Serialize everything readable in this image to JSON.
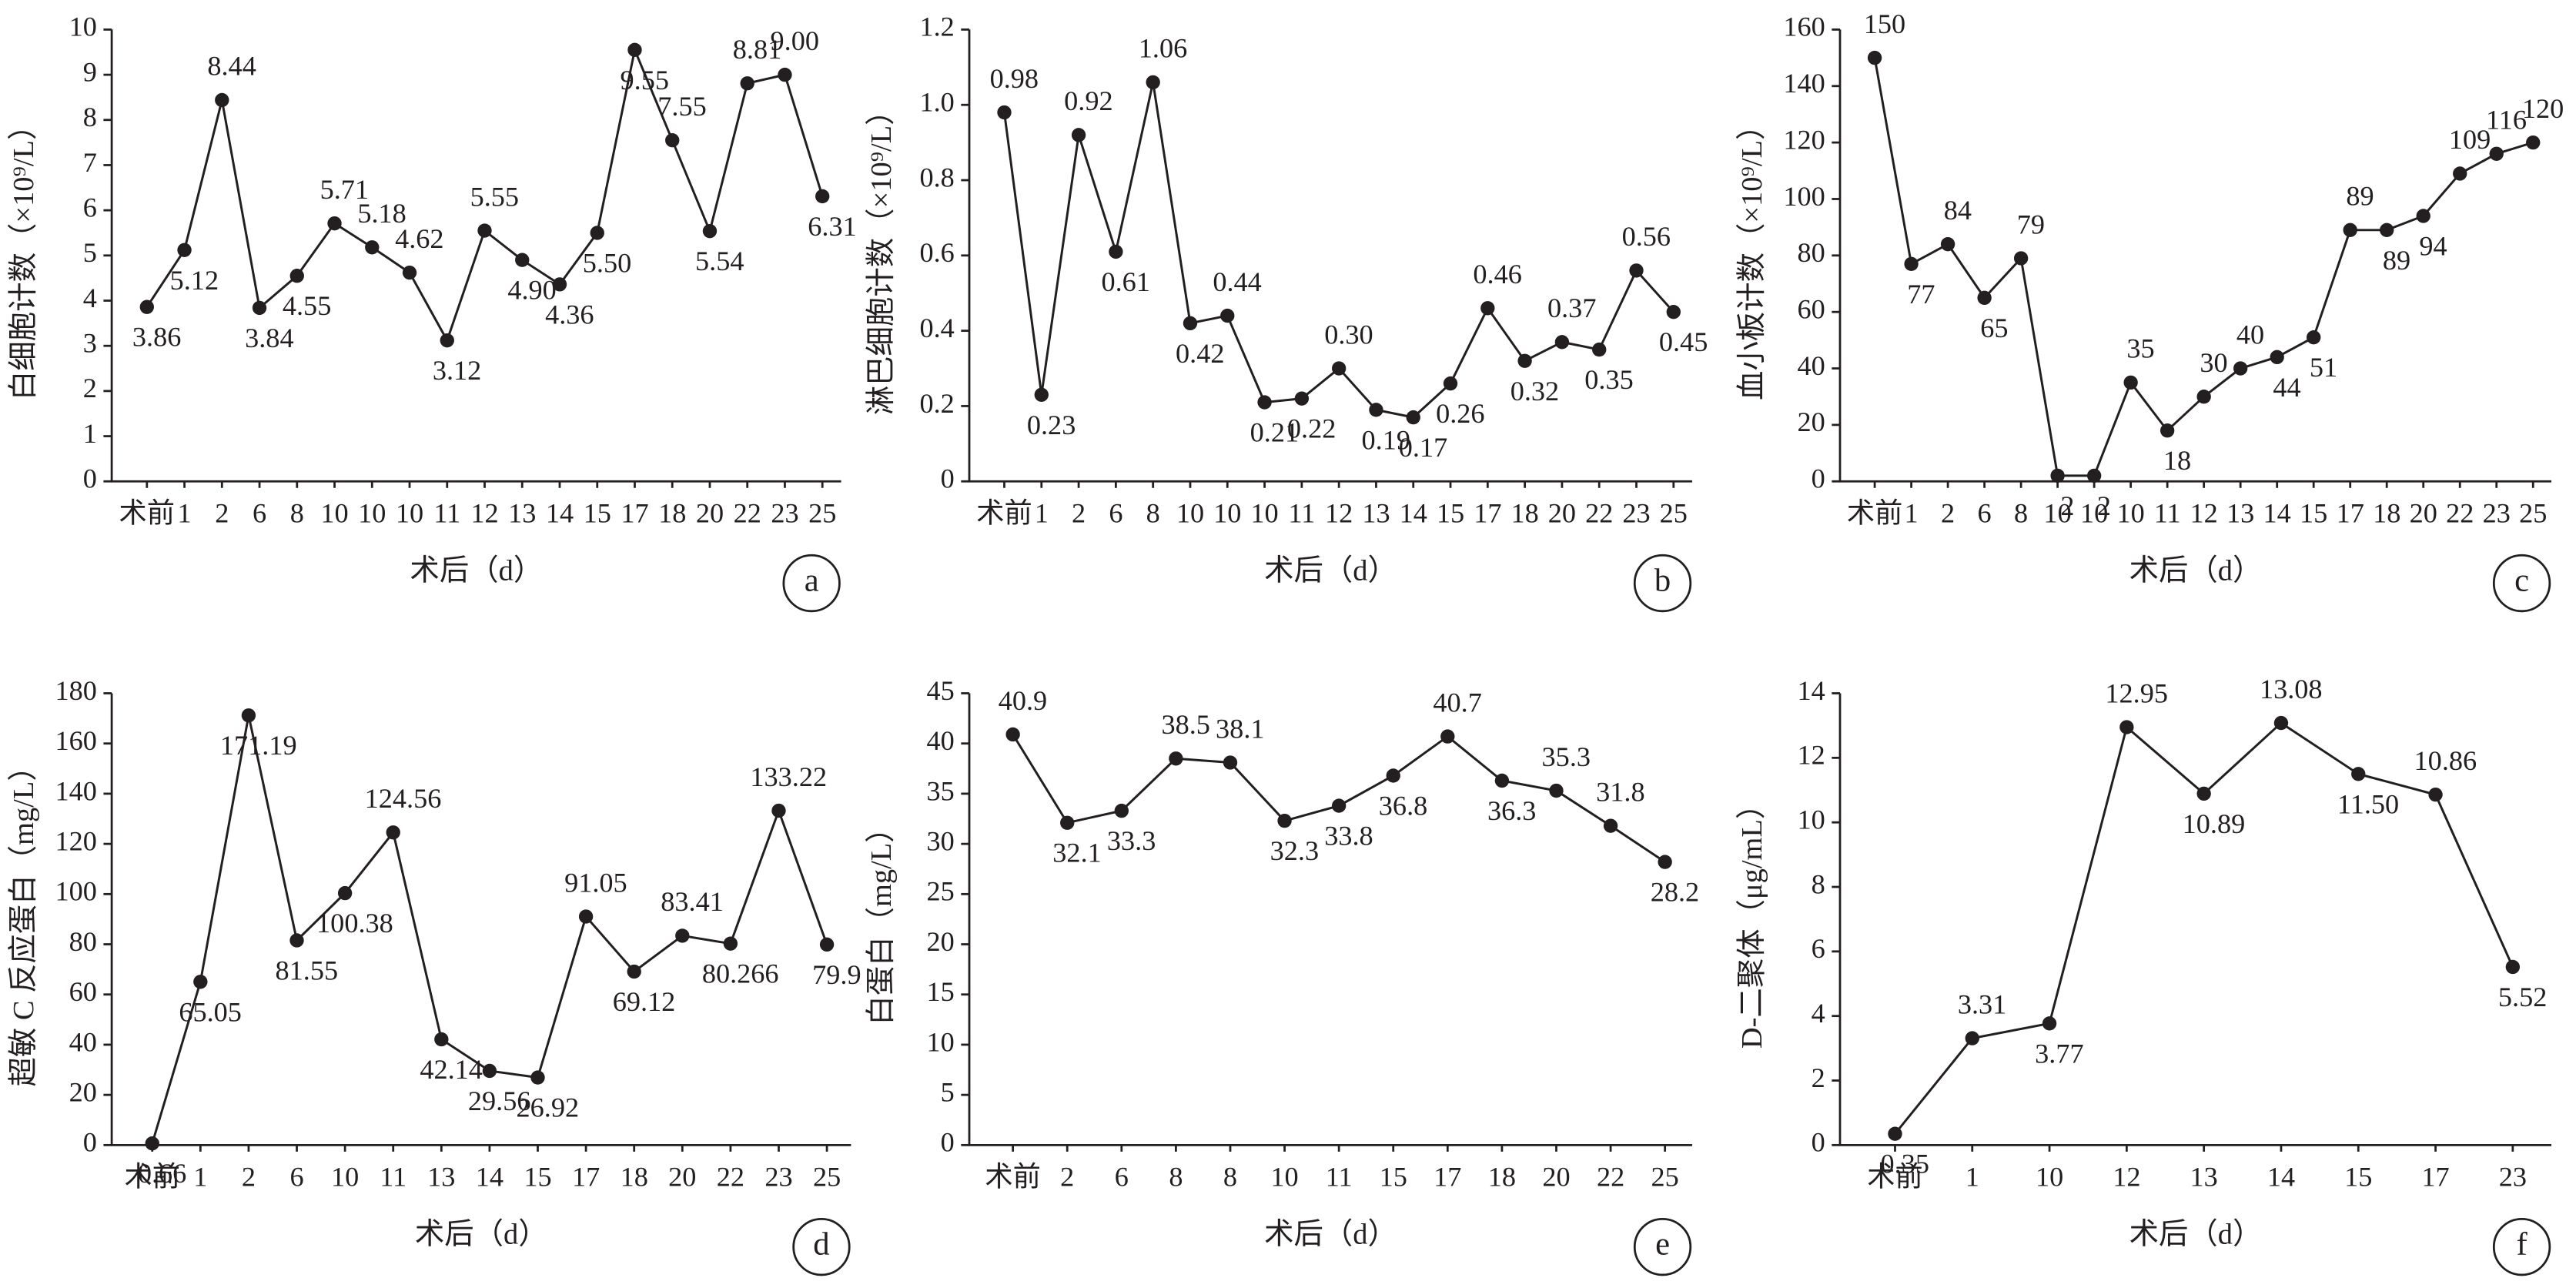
{
  "chart_data": [
    {
      "type": "line",
      "panel": "a",
      "ylabel": "白细胞计数（×10⁹/L）",
      "xlabel": "术后（d）",
      "color": "#231f20",
      "categories": [
        "术前",
        "1",
        "2",
        "6",
        "8",
        "10",
        "10",
        "10",
        "11",
        "12",
        "13",
        "14",
        "15",
        "17",
        "18",
        "20",
        "22",
        "23",
        "25"
      ],
      "values": [
        3.86,
        5.12,
        8.44,
        3.84,
        4.55,
        5.71,
        5.18,
        4.62,
        3.12,
        5.55,
        4.9,
        4.36,
        5.5,
        9.55,
        7.55,
        5.54,
        8.81,
        9.0,
        6.31
      ],
      "value_labels": [
        "3.86",
        "5.12",
        "8.44",
        "3.84",
        "4.55",
        "5.71",
        "5.18",
        "4.62",
        "3.12",
        "5.55",
        "4.90",
        "4.36",
        "5.50",
        "9.55",
        "7.55",
        "5.54",
        "8.81",
        "9.00",
        "6.31"
      ],
      "ylim": [
        0,
        10
      ],
      "yticks": [
        0,
        1,
        2,
        3,
        4,
        5,
        6,
        7,
        8,
        9,
        10
      ]
    },
    {
      "type": "line",
      "panel": "b",
      "ylabel": "淋巴细胞计数（×10⁹/L）",
      "xlabel": "术后（d）",
      "color": "#231f20",
      "categories": [
        "术前",
        "1",
        "2",
        "6",
        "8",
        "10",
        "10",
        "10",
        "11",
        "12",
        "13",
        "14",
        "15",
        "17",
        "18",
        "20",
        "22",
        "23",
        "25"
      ],
      "values": [
        0.98,
        0.23,
        0.92,
        0.61,
        1.06,
        0.42,
        0.44,
        0.21,
        0.22,
        0.3,
        0.19,
        0.17,
        0.26,
        0.46,
        0.32,
        0.37,
        0.35,
        0.56,
        0.45
      ],
      "value_labels": [
        "0.98",
        "0.23",
        "0.92",
        "0.61",
        "1.06",
        "0.42",
        "0.44",
        "0.21",
        "0.22",
        "0.30",
        "0.19",
        "0.17",
        "0.26",
        "0.46",
        "0.32",
        "0.37",
        "0.35",
        "0.56",
        "0.45"
      ],
      "ylim": [
        0,
        1.2
      ],
      "yticks": [
        0,
        0.2,
        0.4,
        0.6,
        0.8,
        {
          "value": 1,
          "label": "1.0"
        },
        1.2
      ]
    },
    {
      "type": "line",
      "panel": "c",
      "ylabel": "血小板计数（×10⁹/L）",
      "xlabel": "术后（d）",
      "color": "#231f20",
      "categories": [
        "术前",
        "1",
        "2",
        "6",
        "8",
        "10",
        "10",
        "10",
        "11",
        "12",
        "13",
        "14",
        "15",
        "17",
        "18",
        "20",
        "22",
        "23",
        "25"
      ],
      "values": [
        150,
        77,
        84,
        65,
        79,
        2,
        2,
        35,
        18,
        30,
        40,
        44,
        51,
        89,
        89,
        94,
        109,
        116,
        120
      ],
      "value_labels": [
        "150",
        "77",
        "84",
        "65",
        "79",
        "2",
        "2",
        "35",
        "18",
        "30",
        "40",
        "44",
        "51",
        "89",
        "89",
        "94",
        "109",
        "116",
        "120"
      ],
      "ylim": [
        0,
        160
      ],
      "yticks": [
        0,
        20,
        40,
        60,
        80,
        100,
        120,
        140,
        160
      ]
    },
    {
      "type": "line",
      "panel": "d",
      "ylabel": "超敏 C 反应蛋白（mg/L）",
      "xlabel": "术后（d）",
      "color": "#231f20",
      "categories": [
        "术前",
        "1",
        "2",
        "6",
        "10",
        "11",
        "13",
        "14",
        "15",
        "17",
        "18",
        "20",
        "22",
        "23",
        "25"
      ],
      "values": [
        0.66,
        65.05,
        171.19,
        81.55,
        100.38,
        124.56,
        42.14,
        29.56,
        26.92,
        91.05,
        69.12,
        83.41,
        80.266,
        133.22,
        79.9
      ],
      "value_labels": [
        "0.66",
        "65.05",
        "171.19",
        "81.55",
        "100.38",
        "124.56",
        "42.14",
        "29.56",
        "26.92",
        "91.05",
        "69.12",
        "83.41",
        "80.266",
        "133.22",
        "79.9"
      ],
      "ylim": [
        0,
        180
      ],
      "yticks": [
        0,
        20,
        40,
        60,
        80,
        100,
        120,
        140,
        160,
        180
      ]
    },
    {
      "type": "line",
      "panel": "e",
      "ylabel": "白蛋白（mg/L）",
      "xlabel": "术后（d）",
      "color": "#231f20",
      "categories": [
        "术前",
        "2",
        "6",
        "8",
        "8",
        "10",
        "11",
        "15",
        "17",
        "18",
        "20",
        "22",
        "25"
      ],
      "values": [
        40.9,
        32.1,
        33.3,
        38.5,
        38.1,
        32.3,
        33.8,
        36.8,
        40.7,
        36.3,
        35.3,
        31.8,
        28.2
      ],
      "value_labels": [
        "40.9",
        "32.1",
        "33.3",
        "38.5",
        "38.1",
        "32.3",
        "33.8",
        "36.8",
        "40.7",
        "36.3",
        "35.3",
        "31.8",
        "28.2"
      ],
      "ylim": [
        0,
        45
      ],
      "yticks": [
        0,
        5,
        10,
        15,
        20,
        25,
        30,
        35,
        40,
        45
      ]
    },
    {
      "type": "line",
      "panel": "f",
      "ylabel": "D-二聚体（μg/mL）",
      "xlabel": "术后（d）",
      "color": "#231f20",
      "categories": [
        "术前",
        "1",
        "10",
        "12",
        "13",
        "14",
        "15",
        "17",
        "23"
      ],
      "values": [
        0.35,
        3.31,
        3.77,
        12.95,
        10.89,
        13.08,
        11.5,
        10.86,
        5.52
      ],
      "value_labels": [
        "0.35",
        "3.31",
        "3.77",
        "12.95",
        "10.89",
        "13.08",
        "11.50",
        "10.86",
        "5.52"
      ],
      "ylim": [
        0,
        14
      ],
      "yticks": [
        0,
        2,
        4,
        6,
        8,
        10,
        12,
        14
      ]
    }
  ]
}
